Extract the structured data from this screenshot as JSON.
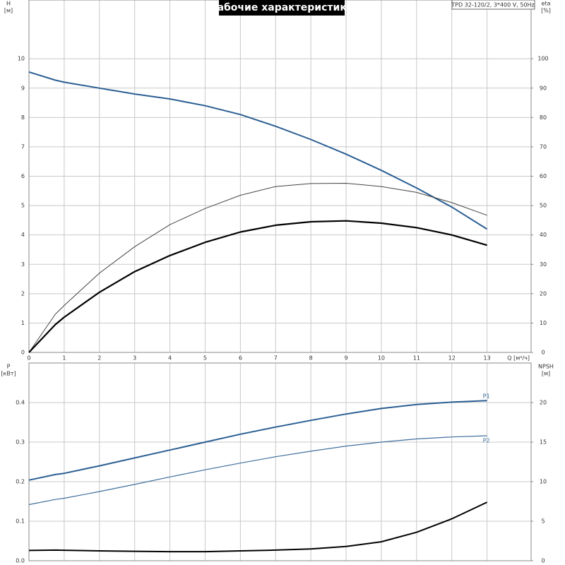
{
  "chart_data": [
    {
      "type": "line",
      "title": "Рабочие характеристики",
      "subtitle": "TPD 32-120/2, 3*400 V, 50Hz",
      "ylabel": "H",
      "ylabel_unit": "[м]",
      "y2label": "eta",
      "y2label_unit": "[%]",
      "xlabel": "Q [м³/ч]",
      "x": [
        0,
        0.75,
        1,
        2,
        3,
        4,
        5,
        6,
        7,
        8,
        9,
        10,
        11,
        12,
        13
      ],
      "series": [
        {
          "color": "#2b5f93",
          "width": 2,
          "values": [
            9.55,
            9.27,
            9.2,
            9.0,
            8.8,
            8.63,
            8.4,
            8.1,
            7.7,
            7.25,
            6.75,
            6.2,
            5.6,
            4.95,
            4.2
          ]
        },
        {
          "color": "#444444",
          "width": 1,
          "axis": "y2",
          "values": [
            0,
            13,
            16,
            27,
            36,
            43.5,
            49,
            53.5,
            56.5,
            57.5,
            57.6,
            56.5,
            54.5,
            51,
            46.7
          ]
        },
        {
          "color": "#000000",
          "width": 2.2,
          "axis": "y2",
          "values": [
            0,
            9.5,
            12,
            20.5,
            27.5,
            33,
            37.5,
            41,
            43.3,
            44.5,
            44.8,
            44,
            42.5,
            40,
            36.5
          ]
        }
      ],
      "xlim": [
        0,
        14.25
      ],
      "xticks": [
        0,
        1,
        2,
        3,
        4,
        5,
        6,
        7,
        8,
        9,
        10,
        11,
        12,
        13
      ],
      "ylim": [
        0,
        12
      ],
      "yticks": [
        0,
        1,
        2,
        3,
        4,
        5,
        6,
        7,
        8,
        9,
        10
      ],
      "y2lim": [
        0,
        120
      ],
      "y2ticks": [
        0,
        10,
        20,
        30,
        40,
        50,
        60,
        70,
        80,
        90,
        100
      ],
      "grid": true,
      "show_xtick_labels": true
    },
    {
      "type": "line",
      "ylabel": "P",
      "ylabel_unit": "[кВт]",
      "y2label": "NPSH",
      "y2label_unit": "[м]",
      "x": [
        0,
        0.75,
        1,
        2,
        3,
        4,
        5,
        6,
        7,
        8,
        9,
        10,
        11,
        12,
        13
      ],
      "series": [
        {
          "name": "P1",
          "color": "#2b5f93",
          "width": 2,
          "values": [
            0.204,
            0.218,
            0.221,
            0.24,
            0.26,
            0.28,
            0.3,
            0.32,
            0.338,
            0.355,
            0.371,
            0.385,
            0.395,
            0.401,
            0.405
          ]
        },
        {
          "name": "P2",
          "color": "#3f6e9c",
          "width": 1.2,
          "values": [
            0.142,
            0.155,
            0.158,
            0.175,
            0.193,
            0.212,
            0.23,
            0.247,
            0.263,
            0.277,
            0.29,
            0.3,
            0.308,
            0.313,
            0.316
          ]
        },
        {
          "color": "#000000",
          "width": 2,
          "axis": "y2",
          "values": [
            1.3,
            1.35,
            1.33,
            1.25,
            1.2,
            1.15,
            1.15,
            1.25,
            1.35,
            1.5,
            1.8,
            2.4,
            3.6,
            5.3,
            7.4
          ]
        }
      ],
      "xlim": [
        0,
        14.25
      ],
      "xticks": [
        0,
        1,
        2,
        3,
        4,
        5,
        6,
        7,
        8,
        9,
        10,
        11,
        12,
        13
      ],
      "ylim": [
        0,
        0.5
      ],
      "yticks": [
        {
          "value": 0,
          "label": "0.0"
        },
        0.1,
        0.2,
        0.3,
        0.4
      ],
      "y2lim": [
        0,
        25
      ],
      "y2ticks": [
        0,
        5,
        10,
        15,
        20
      ],
      "grid": true,
      "show_xtick_labels": false
    }
  ]
}
